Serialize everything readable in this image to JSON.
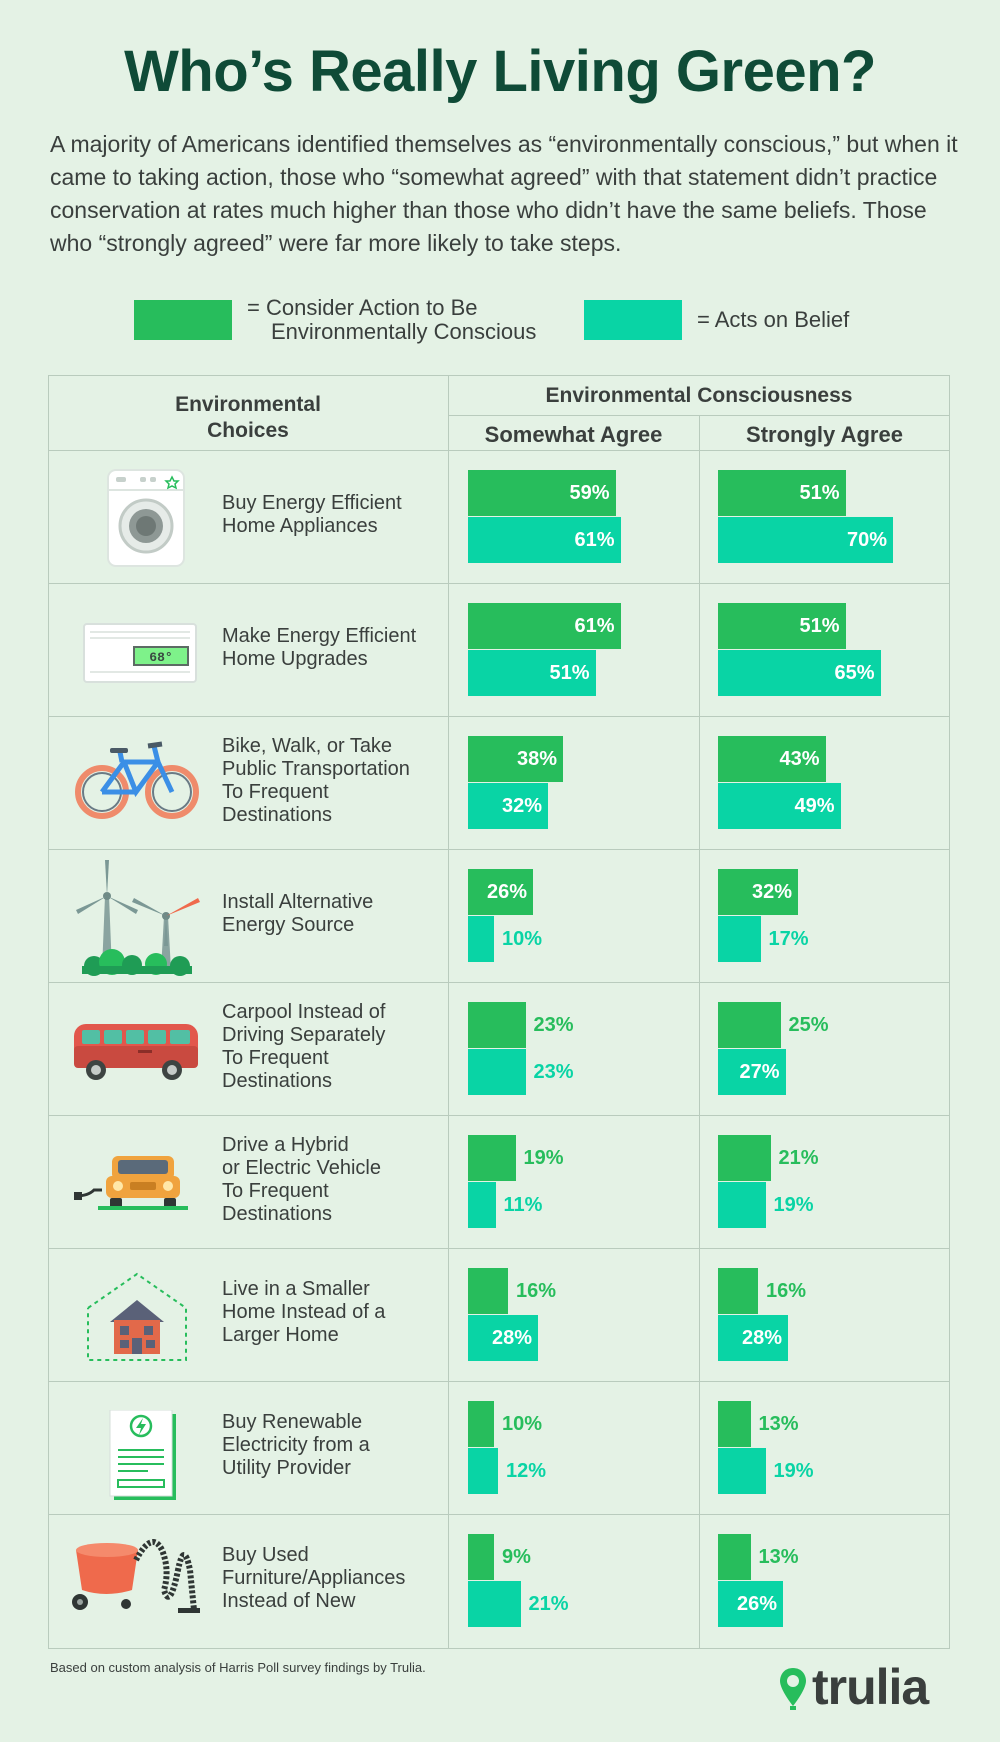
{
  "title": "Who’s Really Living Green?",
  "intro": "A majority of Americans identified themselves as “environmentally conscious,” but when it came to taking action, those who “somewhat agreed” with that statement didn’t practice conservation at rates much higher than those who didn’t have the same beliefs. Those who “strongly agreed” were far more likely to take steps.",
  "legend": {
    "consider_line1": "= Consider Action to Be",
    "consider_line2": "Environmentally Conscious",
    "acts": "= Acts on Belief"
  },
  "colors": {
    "consider": "#27bd5c",
    "acts": "#09d4a5",
    "title": "#0f4b37",
    "background": "#e4f2e5"
  },
  "table": {
    "choices_header_line1": "Environmental",
    "choices_header_line2": "Choices",
    "consciousness_header": "Environmental Consciousness",
    "somewhat_header": "Somewhat Agree",
    "strongly_header": "Strongly Agree"
  },
  "chart_data": {
    "type": "bar",
    "categories": [
      "Buy Energy Efficient Home Appliances",
      "Make Energy Efficient Home Upgrades",
      "Bike, Walk, or Take Public Transportation To Frequent Destinations",
      "Install Alternative Energy Source",
      "Carpool Instead of Driving Separately To Frequent Destinations",
      "Drive a Hybrid or Electric Vehicle To Frequent Destinations",
      "Live in a Smaller Home Instead of a Larger Home",
      "Buy Renewable Electricity from a Utility Provider",
      "Buy Used Furniture/Appliances Instead of New"
    ],
    "groups": [
      "Somewhat Agree",
      "Strongly Agree"
    ],
    "series": [
      {
        "name": "Consider Action to Be Environmentally Conscious",
        "group": "Somewhat Agree",
        "values": [
          59,
          61,
          38,
          26,
          23,
          19,
          16,
          10,
          9
        ]
      },
      {
        "name": "Acts on Belief",
        "group": "Somewhat Agree",
        "values": [
          61,
          51,
          32,
          10,
          23,
          11,
          28,
          12,
          21
        ]
      },
      {
        "name": "Consider Action to Be Environmentally Conscious",
        "group": "Strongly Agree",
        "values": [
          51,
          51,
          43,
          32,
          25,
          21,
          16,
          13,
          13
        ]
      },
      {
        "name": "Acts on Belief",
        "group": "Strongly Agree",
        "values": [
          70,
          65,
          49,
          17,
          27,
          19,
          28,
          19,
          26
        ]
      }
    ],
    "unit": "%",
    "xlim": [
      0,
      100
    ]
  },
  "rows": [
    {
      "lines": [
        "Buy Energy Efficient",
        "Home Appliances"
      ],
      "icon": "washing-machine-icon",
      "labels": {
        "sc": "59%",
        "sa": "61%",
        "tc": "51%",
        "ta": "70%"
      }
    },
    {
      "lines": [
        "Make Energy Efficient",
        "Home Upgrades"
      ],
      "icon": "thermostat-icon",
      "thermostat_reading": "68°",
      "labels": {
        "sc": "61%",
        "sa": "51%",
        "tc": "51%",
        "ta": "65%"
      }
    },
    {
      "lines": [
        "Bike, Walk, or Take",
        "Public Transportation",
        "To Frequent",
        "Destinations"
      ],
      "icon": "bicycle-icon",
      "labels": {
        "sc": "38%",
        "sa": "32%",
        "tc": "43%",
        "ta": "49%"
      }
    },
    {
      "lines": [
        "Install Alternative",
        "Energy Source"
      ],
      "icon": "wind-turbine-icon",
      "labels": {
        "sc": "26%",
        "sa": "10%",
        "tc": "32%",
        "ta": "17%"
      }
    },
    {
      "lines": [
        "Carpool Instead of",
        "Driving Separately",
        "To Frequent",
        "Destinations"
      ],
      "icon": "van-icon",
      "labels": {
        "sc": "23%",
        "sa": "23%",
        "tc": "25%",
        "ta": "27%"
      }
    },
    {
      "lines": [
        "Drive a Hybrid",
        "or Electric Vehicle",
        "To Frequent",
        "Destinations"
      ],
      "icon": "electric-car-icon",
      "labels": {
        "sc": "19%",
        "sa": "11%",
        "tc": "21%",
        "ta": "19%"
      }
    },
    {
      "lines": [
        "Live in a Smaller",
        "Home Instead of a",
        "Larger Home"
      ],
      "icon": "small-house-icon",
      "labels": {
        "sc": "16%",
        "sa": "28%",
        "tc": "16%",
        "ta": "28%"
      }
    },
    {
      "lines": [
        "Buy Renewable",
        "Electricity from a",
        "Utility Provider"
      ],
      "icon": "electric-bill-icon",
      "labels": {
        "sc": "10%",
        "sa": "12%",
        "tc": "13%",
        "ta": "19%"
      }
    },
    {
      "lines": [
        "Buy Used",
        "Furniture/Appliances",
        "Instead of New"
      ],
      "icon": "vacuum-cleaner-icon",
      "labels": {
        "sc": "9%",
        "sa": "21%",
        "tc": "13%",
        "ta": "26%"
      }
    }
  ],
  "footnote": "Based on custom analysis of Harris Poll survey findings by Trulia.",
  "logo_text": "trulia"
}
